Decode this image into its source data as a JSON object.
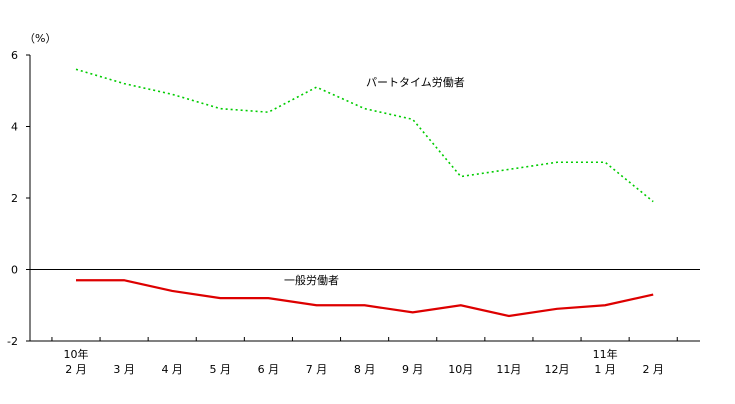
{
  "chart_data": {
    "type": "line",
    "unit_label": "（%）",
    "ylim": [
      -2,
      6
    ],
    "y_ticks": [
      "6",
      "4",
      "2",
      "0",
      "-2"
    ],
    "y_tick_values": [
      6,
      4,
      2,
      0,
      -2
    ],
    "year_labels": [
      "10年",
      "",
      "",
      "",
      "",
      "",
      "",
      "",
      "",
      "",
      "",
      "11年",
      ""
    ],
    "categories": [
      "2 月",
      "3 月",
      "4 月",
      "5 月",
      "6 月",
      "7 月",
      "8 月",
      "9 月",
      "10月",
      "11月",
      "12月",
      "1 月",
      "2 月"
    ],
    "series": [
      {
        "name": "パートタイム労働者",
        "color": "#00cc00",
        "style": "dotted",
        "values": [
          5.6,
          5.2,
          4.9,
          4.5,
          4.4,
          5.1,
          4.5,
          4.2,
          2.6,
          2.8,
          3.0,
          3.0,
          1.9
        ]
      },
      {
        "name": "一般労働者",
        "color": "#dd0000",
        "style": "solid",
        "values": [
          -0.3,
          -0.3,
          -0.6,
          -0.8,
          -0.8,
          -1.0,
          -1.0,
          -1.2,
          -1.0,
          -1.3,
          -1.1,
          -1.0,
          -0.7
        ]
      }
    ]
  }
}
